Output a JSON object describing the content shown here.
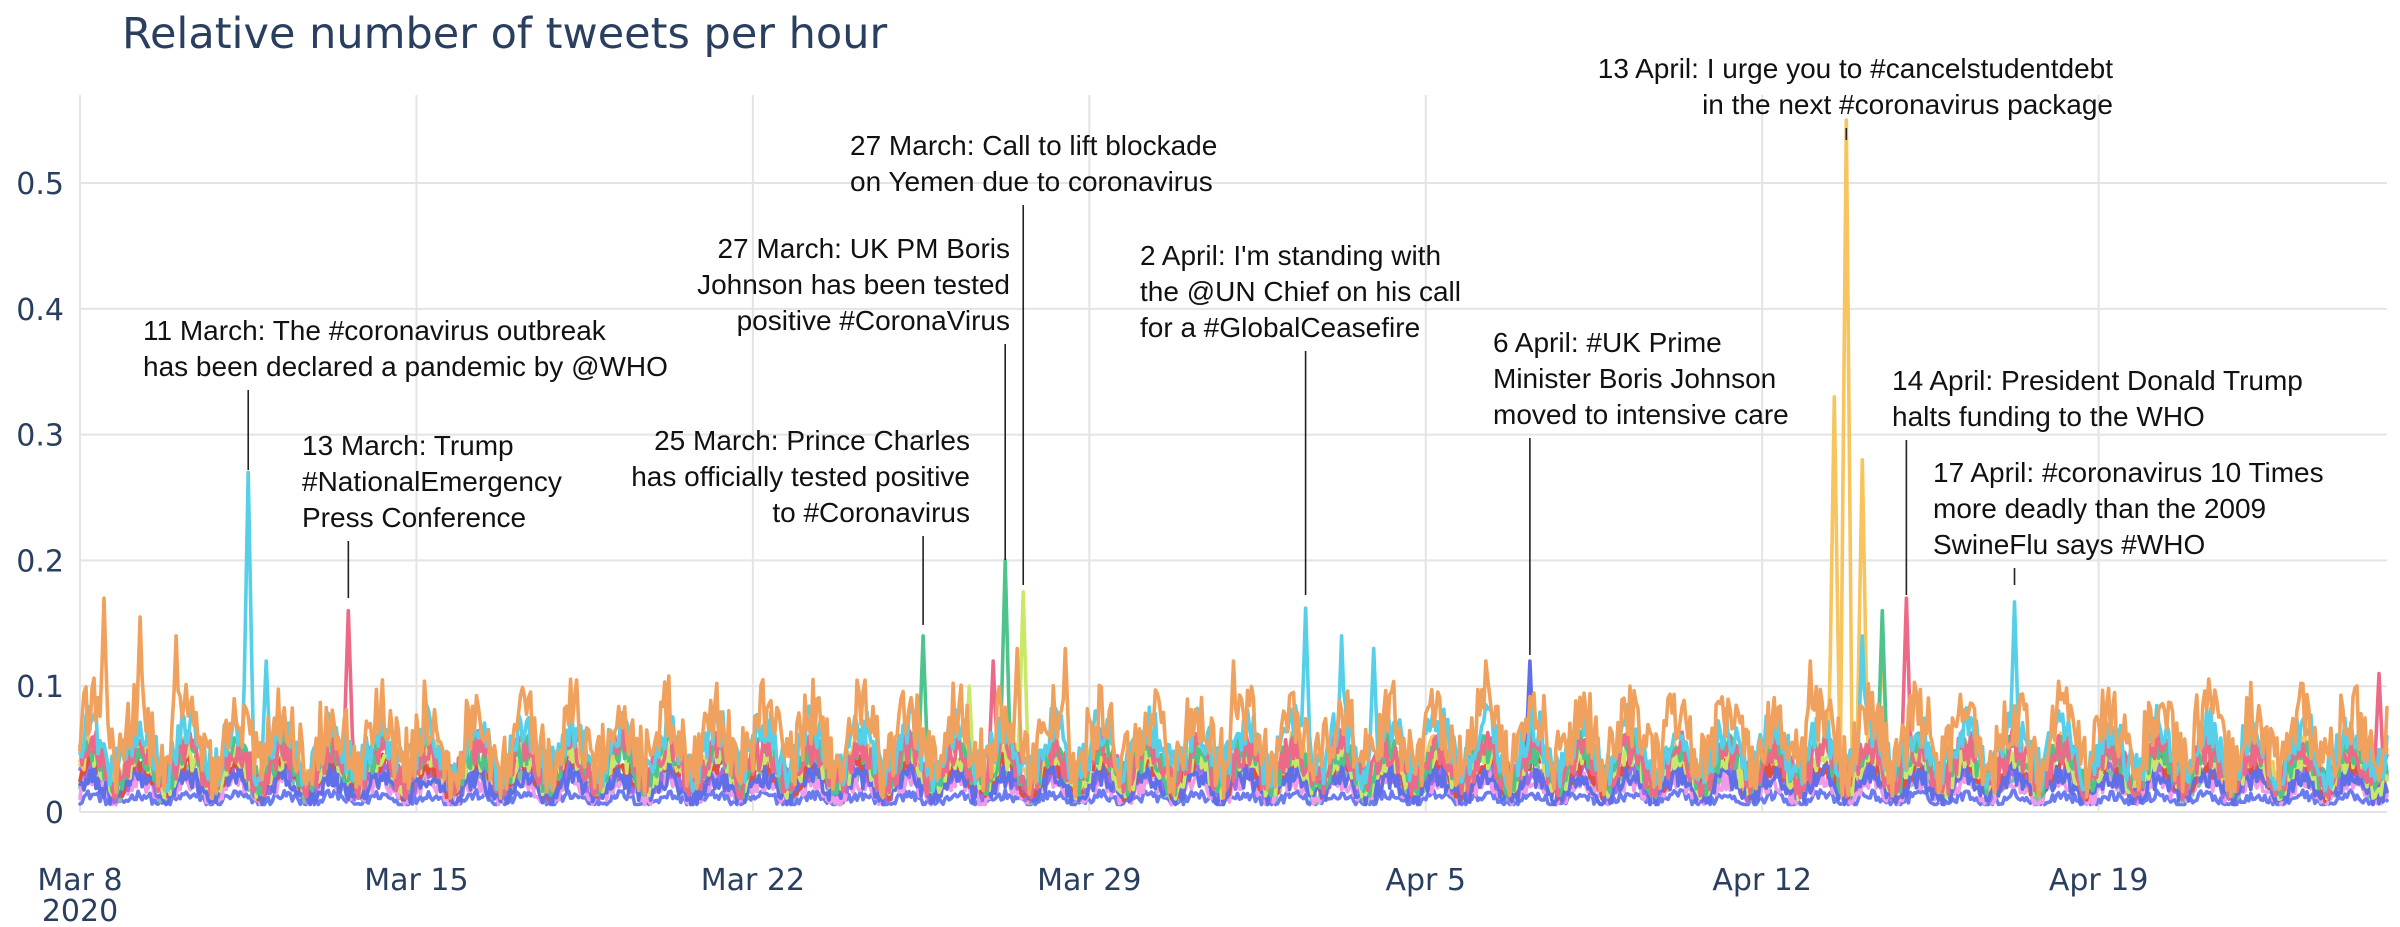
{
  "chart_data": {
    "type": "line",
    "title": "Relative number of tweets per hour",
    "xlabel": "",
    "ylabel": "",
    "xlim": [
      "2020-03-08",
      "2020-04-25"
    ],
    "ylim": [
      0,
      0.57
    ],
    "grid": true,
    "legend": "none",
    "x_ticks": [
      {
        "date": "2020-03-08",
        "label": "Mar 8",
        "sublabel": "2020"
      },
      {
        "date": "2020-03-15",
        "label": "Mar 15"
      },
      {
        "date": "2020-03-22",
        "label": "Mar 22"
      },
      {
        "date": "2020-03-29",
        "label": "Mar 29"
      },
      {
        "date": "2020-04-05",
        "label": "Apr 5"
      },
      {
        "date": "2020-04-12",
        "label": "Apr 12"
      },
      {
        "date": "2020-04-19",
        "label": "Apr 19"
      }
    ],
    "y_ticks": [
      {
        "value": 0,
        "label": "0"
      },
      {
        "value": 0.1,
        "label": "0.1"
      },
      {
        "value": 0.2,
        "label": "0.2"
      },
      {
        "value": 0.3,
        "label": "0.3"
      },
      {
        "value": 0.4,
        "label": "0.4"
      },
      {
        "value": 0.5,
        "label": "0.5"
      }
    ],
    "series": [
      {
        "color": "#f0a15d",
        "base": 0.07,
        "noise": 0.028,
        "spikes": [
          [
            "2020-03-08T12",
            0.17
          ],
          [
            "2020-03-09T06",
            0.155
          ],
          [
            "2020-03-10T00",
            0.14
          ],
          [
            "2020-03-27T12",
            0.13
          ],
          [
            "2020-03-28T12",
            0.13
          ],
          [
            "2020-04-01T00",
            0.12
          ],
          [
            "2020-04-06T06",
            0.12
          ],
          [
            "2020-04-13T00",
            0.12
          ]
        ]
      },
      {
        "color": "#56cfe8",
        "base": 0.06,
        "noise": 0.018,
        "spikes": [
          [
            "2020-03-11T12",
            0.27
          ],
          [
            "2020-03-11T21",
            0.12
          ],
          [
            "2020-04-02T12",
            0.162
          ],
          [
            "2020-04-03T06",
            0.14
          ],
          [
            "2020-04-03T22",
            0.13
          ],
          [
            "2020-04-17T06",
            0.167
          ],
          [
            "2020-04-14T02",
            0.14
          ]
        ]
      },
      {
        "color": "#ec6a87",
        "base": 0.045,
        "noise": 0.015,
        "spikes": [
          [
            "2020-03-13T14",
            0.16
          ],
          [
            "2020-03-27T00",
            0.12
          ],
          [
            "2020-04-15T00",
            0.17
          ],
          [
            "2020-04-24T20",
            0.11
          ]
        ]
      },
      {
        "color": "#4fc38c",
        "base": 0.045,
        "noise": 0.014,
        "spikes": [
          [
            "2020-03-25T13",
            0.14
          ],
          [
            "2020-03-27T06",
            0.2
          ],
          [
            "2020-04-14T12",
            0.16
          ]
        ]
      },
      {
        "color": "#c9e86a",
        "base": 0.04,
        "noise": 0.012,
        "spikes": [
          [
            "2020-03-27T15",
            0.175
          ],
          [
            "2020-03-26T12",
            0.1
          ]
        ]
      },
      {
        "color": "#5f6fe8",
        "base": 0.025,
        "noise": 0.01,
        "spikes": [
          [
            "2020-04-07T04",
            0.12
          ]
        ]
      },
      {
        "color": "#f7c45e",
        "base": 0.045,
        "noise": 0.012,
        "spikes": [
          [
            "2020-04-13T12",
            0.33
          ],
          [
            "2020-04-13T18",
            0.55
          ],
          [
            "2020-04-14T02",
            0.28
          ],
          [
            "2020-04-14T12",
            0.14
          ]
        ]
      },
      {
        "color": "#e24f3c",
        "base": 0.035,
        "noise": 0.011,
        "spikes": []
      },
      {
        "color": "#a06ce8",
        "base": 0.03,
        "noise": 0.01,
        "spikes": []
      },
      {
        "color": "#f19be8",
        "base": 0.022,
        "noise": 0.008,
        "spikes": []
      },
      {
        "color": "#7fbfa0",
        "base": 0.028,
        "noise": 0.009,
        "spikes": []
      },
      {
        "color": "#6b7bf0",
        "base": 0.012,
        "noise": 0.004,
        "spikes": []
      }
    ],
    "annotations": [
      {
        "lines": [
          "11 March: The #coronavirus outbreak",
          "has been declared a pandemic by @WHO"
        ],
        "align": "start",
        "date": "2020-03-11T12"
      },
      {
        "lines": [
          "13 March: Trump",
          "#NationalEmergency",
          "Press Conference"
        ],
        "align": "start",
        "date": "2020-03-13T14"
      },
      {
        "lines": [
          "25 March: Prince Charles",
          "has officially tested positive",
          "to #Coronavirus"
        ],
        "align": "end",
        "date": "2020-03-25T13"
      },
      {
        "lines": [
          "27 March: UK PM Boris",
          "Johnson has been tested",
          "positive #CoronaVirus"
        ],
        "align": "end",
        "date": "2020-03-27T06"
      },
      {
        "lines": [
          "27 March: Call to lift blockade",
          "on Yemen due to coronavirus"
        ],
        "align": "start",
        "date": "2020-03-27T15"
      },
      {
        "lines": [
          "2 April: I'm standing with",
          "the @UN Chief on his call",
          "for a #GlobalCeasefire"
        ],
        "align": "start",
        "date": "2020-04-02T12"
      },
      {
        "lines": [
          "6 April: #UK Prime",
          "Minister Boris Johnson",
          "moved to intensive care"
        ],
        "align": "start",
        "date": "2020-04-07T04"
      },
      {
        "lines": [
          "13 April: I urge you to #cancelstudentdebt",
          "in the next #coronavirus package"
        ],
        "align": "end",
        "date": "2020-04-13T18"
      },
      {
        "lines": [
          "14 April: President Donald Trump",
          "halts funding to the WHO"
        ],
        "align": "start",
        "date": "2020-04-15T00"
      },
      {
        "lines": [
          "17 April: #coronavirus 10 Times",
          "more deadly than the 2009",
          "SwineFlu says #WHO"
        ],
        "align": "start",
        "date": "2020-04-17T06"
      }
    ]
  }
}
